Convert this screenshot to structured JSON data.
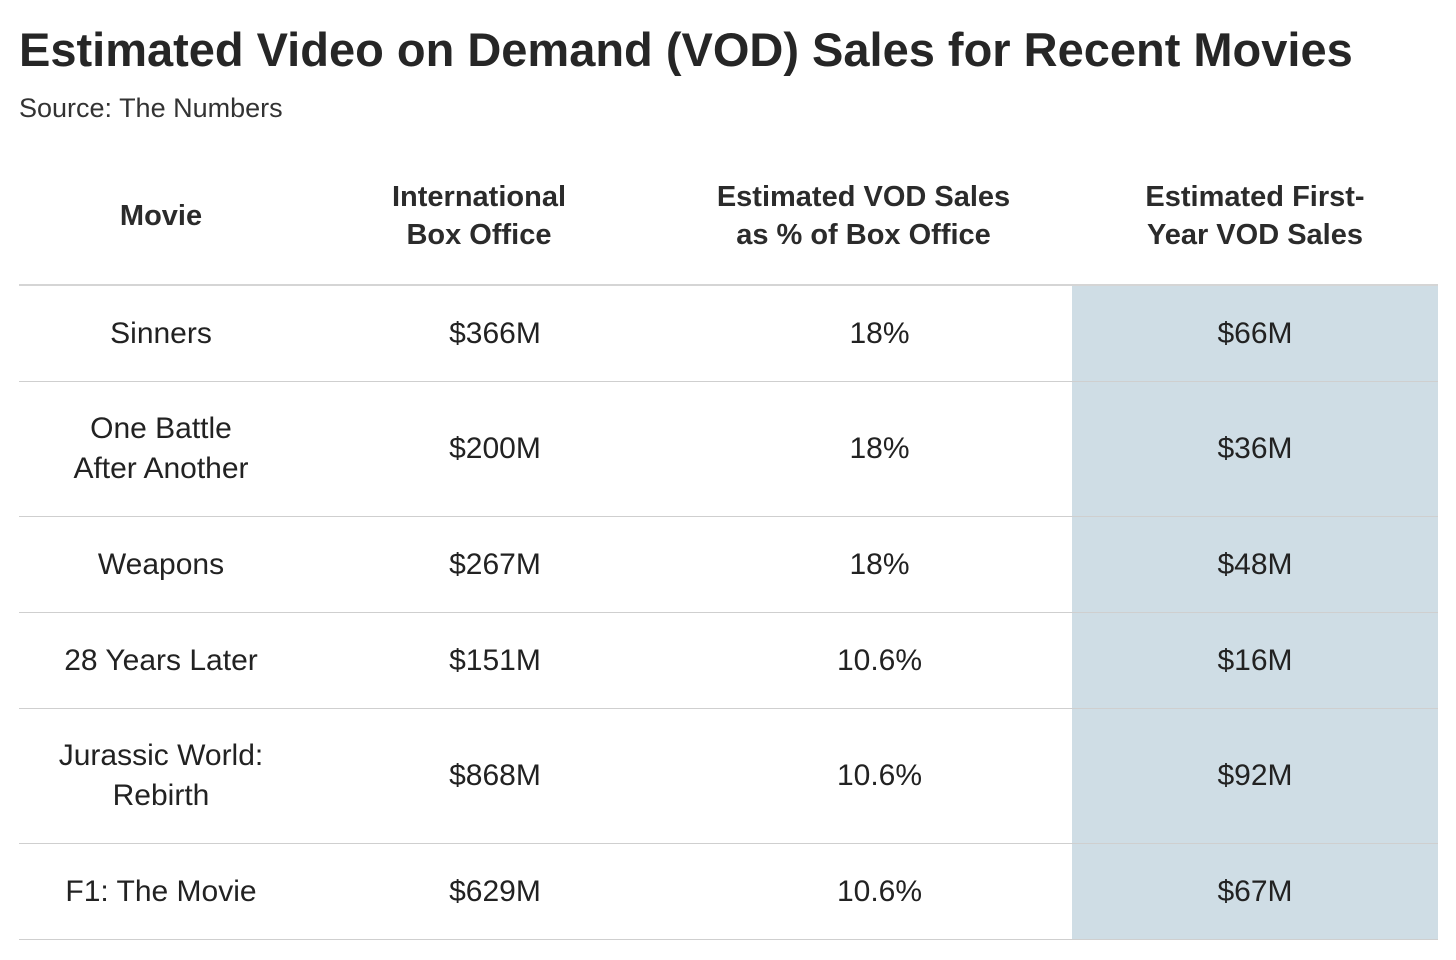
{
  "title": "Estimated Video on Demand (VOD) Sales for Recent Movies",
  "subtitle": "Source: The Numbers",
  "chart_data": {
    "type": "table",
    "title": "Estimated Video on Demand (VOD) Sales for Recent Movies",
    "subtitle": "Source: The Numbers",
    "columns": [
      "Movie",
      "International\nBox Office",
      "Estimated VOD Sales\nas % of Box Office",
      "Estimated First-\nYear VOD Sales"
    ],
    "highlight_color": "#cfdde5",
    "rows": [
      {
        "movie": "Sinners",
        "box_office": "$366M",
        "vod_pct": "18%",
        "vod_sales": "$66M"
      },
      {
        "movie": "One Battle\nAfter Another",
        "box_office": "$200M",
        "vod_pct": "18%",
        "vod_sales": "$36M"
      },
      {
        "movie": "Weapons",
        "box_office": "$267M",
        "vod_pct": "18%",
        "vod_sales": "$48M"
      },
      {
        "movie": "28 Years Later",
        "box_office": "$151M",
        "vod_pct": "10.6%",
        "vod_sales": "$16M"
      },
      {
        "movie": "Jurassic World:\nRebirth",
        "box_office": "$868M",
        "vod_pct": "10.6%",
        "vod_sales": "$92M"
      },
      {
        "movie": "F1: The Movie",
        "box_office": "$629M",
        "vod_pct": "10.6%",
        "vod_sales": "$67M"
      }
    ]
  }
}
